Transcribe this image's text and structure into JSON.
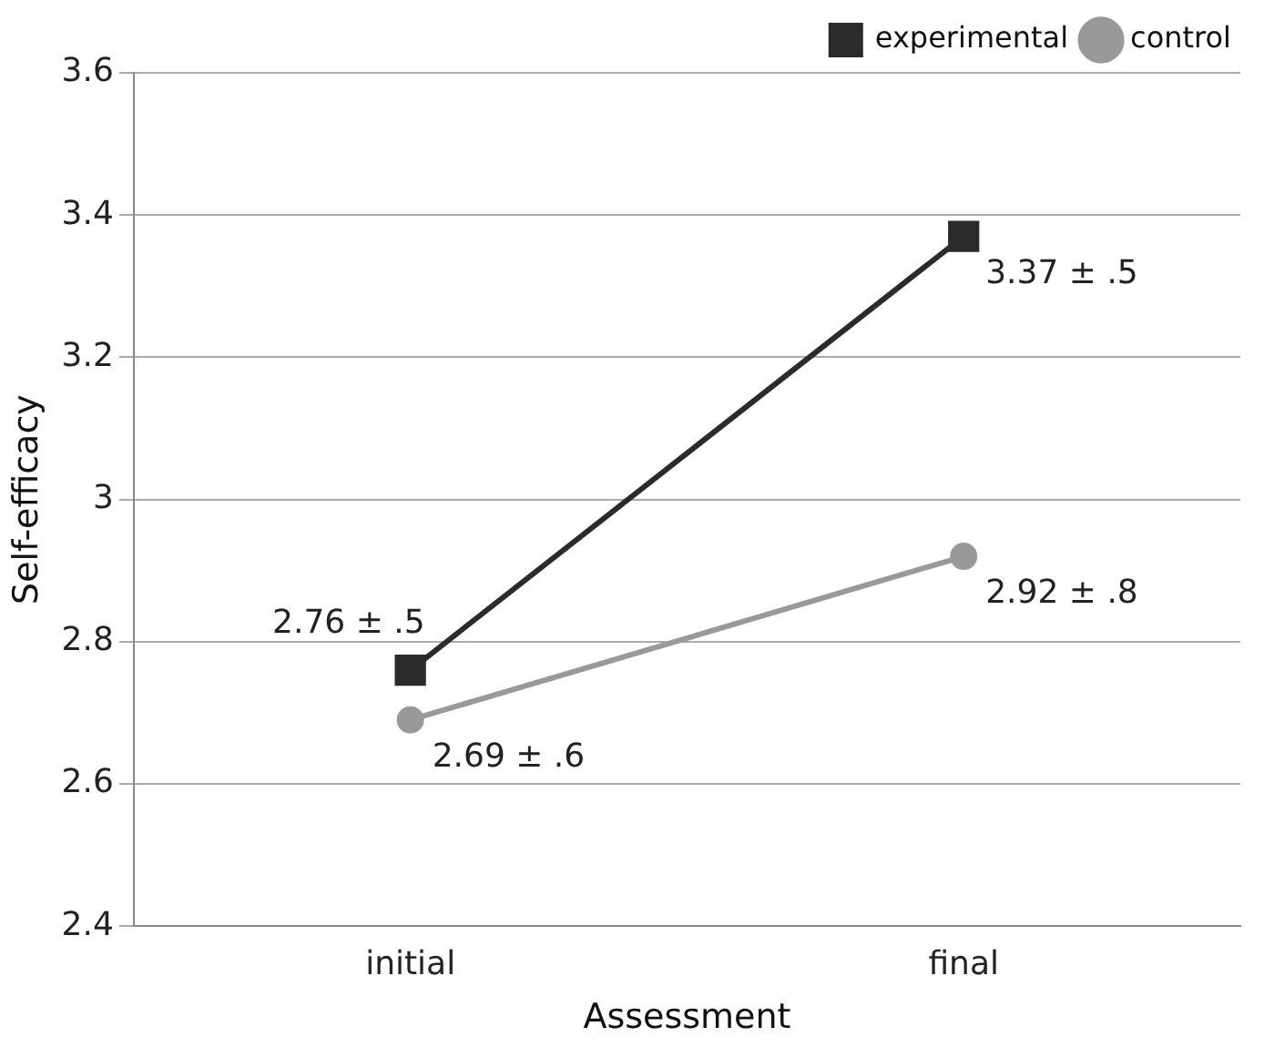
{
  "chart_data": {
    "type": "line",
    "xlabel": "Assessment",
    "ylabel": "Self-efficacy",
    "categories": [
      "initial",
      "final"
    ],
    "series": [
      {
        "name": "experimental",
        "color": "#2b2b2b",
        "marker": "square",
        "values": [
          2.76,
          3.37
        ],
        "value_labels": [
          "2.76 ± .5",
          "3.37 ± .5"
        ]
      },
      {
        "name": "control",
        "color": "#999999",
        "marker": "circle",
        "values": [
          2.69,
          2.92
        ],
        "value_labels": [
          "2.69 ± .6",
          "2.92 ± .8"
        ]
      }
    ],
    "ylim": [
      2.4,
      3.6
    ],
    "yticks": [
      2.4,
      2.6,
      2.8,
      3,
      3.2,
      3.4,
      3.6
    ],
    "grid": "y",
    "legend": "top right",
    "line_style": "solid"
  }
}
